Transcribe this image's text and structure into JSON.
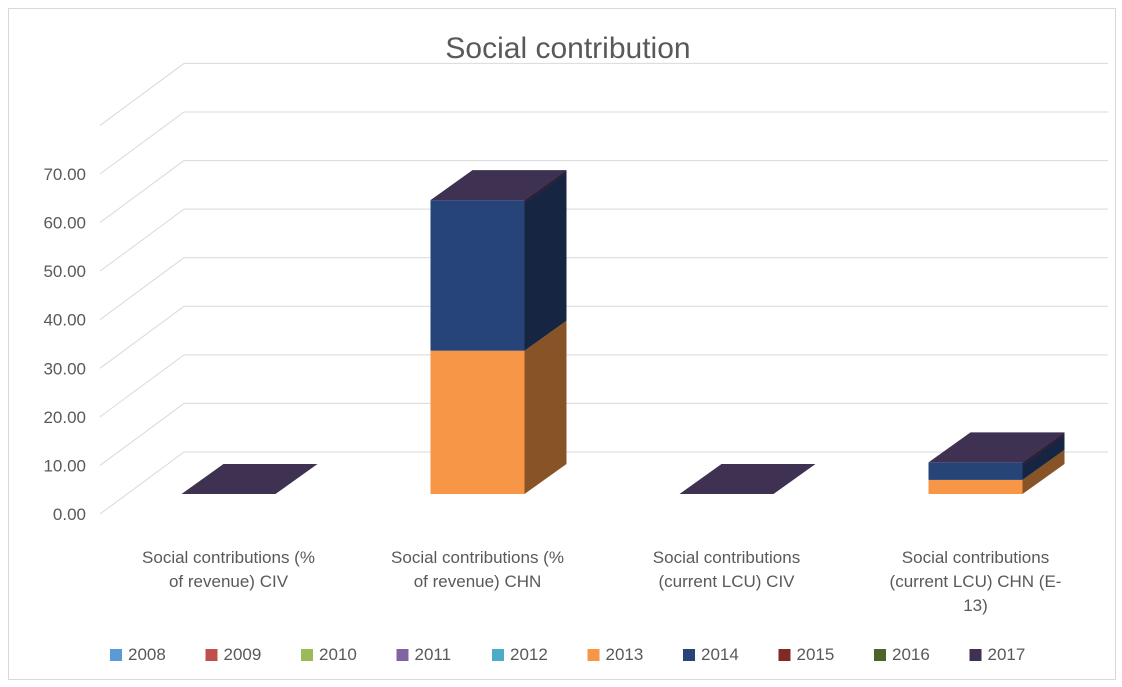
{
  "chart_data": {
    "type": "bar",
    "stacked": true,
    "three_d": true,
    "title": "Social contribution",
    "xlabel": "",
    "ylabel": "",
    "ylim": [
      0,
      70
    ],
    "yticks": [
      "0.00",
      "10.00",
      "20.00",
      "30.00",
      "40.00",
      "50.00",
      "60.00",
      "70.00"
    ],
    "grid": true,
    "legend_position": "bottom",
    "categories": [
      [
        "Social contributions (%",
        "of revenue) CIV"
      ],
      [
        "Social contributions (%",
        "of revenue) CHN"
      ],
      [
        "Social contributions",
        "(current LCU) CIV"
      ],
      [
        "Social contributions",
        "(current LCU) CHN (E-",
        "13)"
      ]
    ],
    "series": [
      {
        "name": "2008",
        "color": "#5b9bd5",
        "values": [
          0,
          0,
          0,
          0
        ]
      },
      {
        "name": "2009",
        "color": "#c0504d",
        "values": [
          0,
          0,
          0,
          0
        ]
      },
      {
        "name": "2010",
        "color": "#9bbb59",
        "values": [
          0,
          0,
          0,
          0
        ]
      },
      {
        "name": "2011",
        "color": "#8064a2",
        "values": [
          0,
          0,
          0,
          0
        ]
      },
      {
        "name": "2012",
        "color": "#4bacc6",
        "values": [
          0,
          0,
          0,
          0
        ]
      },
      {
        "name": "2013",
        "color": "#f79646",
        "values": [
          0,
          29.5,
          0,
          2.9
        ]
      },
      {
        "name": "2014",
        "color": "#264478",
        "values": [
          0,
          31.0,
          0,
          3.6
        ]
      },
      {
        "name": "2015",
        "color": "#7f2a27",
        "values": [
          0,
          0,
          0,
          0
        ]
      },
      {
        "name": "2016",
        "color": "#4f6228",
        "values": [
          0,
          0,
          0,
          0
        ]
      },
      {
        "name": "2017",
        "color": "#3f3151",
        "values": [
          0,
          0,
          0,
          0
        ]
      }
    ]
  }
}
